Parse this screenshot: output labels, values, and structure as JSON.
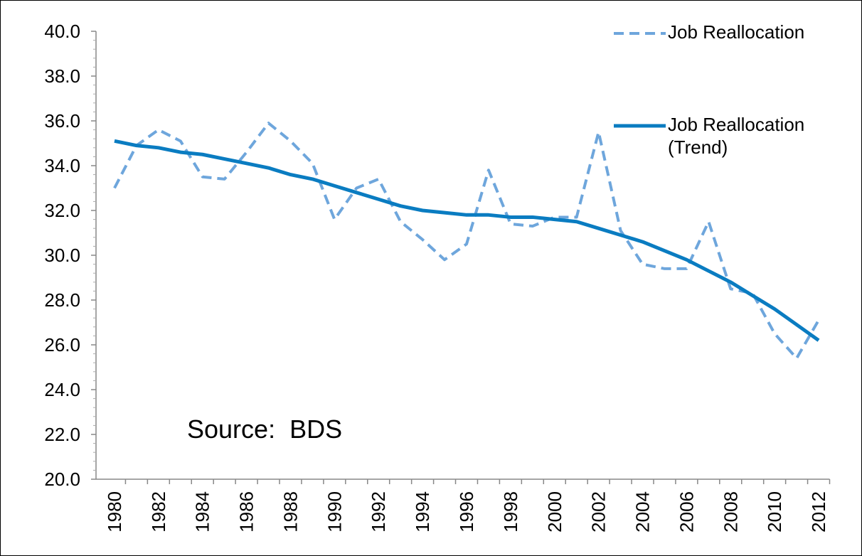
{
  "chart_data": {
    "type": "line",
    "categories": [
      "1980",
      null,
      "1982",
      null,
      "1984",
      null,
      "1986",
      null,
      "1988",
      null,
      "1990",
      null,
      "1992",
      null,
      "1994",
      null,
      "1996",
      null,
      "1998",
      null,
      "2000",
      null,
      "2002",
      null,
      "2004",
      null,
      "2006",
      null,
      "2008",
      null,
      "2010",
      null,
      "2012"
    ],
    "series": [
      {
        "name": "Job Reallocation",
        "color": "#6ea6dc",
        "dashed": true,
        "values": [
          33.0,
          34.9,
          35.6,
          35.1,
          33.5,
          33.4,
          34.6,
          35.9,
          35.1,
          34.1,
          31.6,
          33.0,
          33.4,
          31.5,
          30.7,
          29.8,
          30.5,
          33.8,
          31.4,
          31.3,
          31.7,
          31.7,
          35.5,
          31.1,
          29.6,
          29.4,
          29.4,
          31.5,
          28.5,
          28.3,
          26.5,
          25.4,
          27.1
        ]
      },
      {
        "name": "Job Reallocation (Trend)",
        "color": "#0a7cc1",
        "dashed": false,
        "values": [
          35.1,
          34.9,
          34.8,
          34.6,
          34.5,
          34.3,
          34.1,
          33.9,
          33.6,
          33.4,
          33.1,
          32.8,
          32.5,
          32.2,
          32.0,
          31.9,
          31.8,
          31.8,
          31.7,
          31.7,
          31.6,
          31.5,
          31.2,
          30.9,
          30.6,
          30.2,
          29.8,
          29.3,
          28.8,
          28.2,
          27.6,
          26.9,
          26.2
        ]
      }
    ],
    "ylim": [
      20,
      40
    ],
    "yticks": [
      {
        "value": 20,
        "label": "20.0"
      },
      {
        "value": 22,
        "label": "22.0"
      },
      {
        "value": 24,
        "label": "24.0"
      },
      {
        "value": 26,
        "label": "26.0"
      },
      {
        "value": 28,
        "label": "28.0"
      },
      {
        "value": 30,
        "label": "30.0"
      },
      {
        "value": 32,
        "label": "32.0"
      },
      {
        "value": 34,
        "label": "34.0"
      },
      {
        "value": 36,
        "label": "36.0"
      },
      {
        "value": 38,
        "label": "38.0"
      },
      {
        "value": 40,
        "label": "40.0"
      }
    ],
    "annotation": "Source:  BDS",
    "legend": "top-right"
  }
}
